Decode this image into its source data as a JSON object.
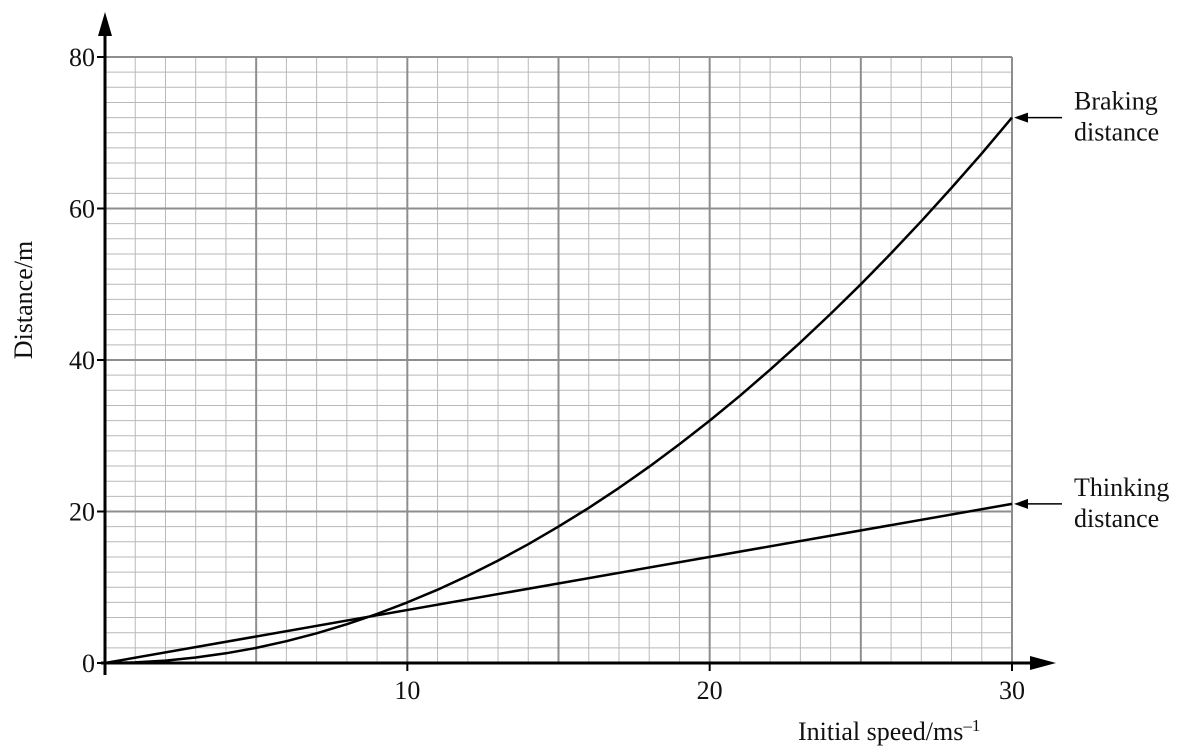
{
  "chart_data": {
    "type": "line",
    "xlabel": "Initial speed/ms",
    "xlabel_superscript": "–1",
    "ylabel": "Distance/m",
    "xlim": [
      0,
      30
    ],
    "ylim": [
      0,
      80
    ],
    "x_ticks": [
      10,
      20,
      30
    ],
    "y_ticks": [
      0,
      20,
      40,
      60,
      80
    ],
    "grid": true,
    "series": [
      {
        "name": "Braking distance",
        "label_lines": [
          "Braking",
          "distance"
        ],
        "x": [
          0,
          1,
          2,
          3,
          4,
          5,
          6,
          7,
          8,
          9,
          10,
          11,
          12,
          13,
          14,
          15,
          16,
          17,
          18,
          19,
          20,
          21,
          22,
          23,
          24,
          25,
          26,
          27,
          28,
          29,
          30
        ],
        "y": [
          0,
          0.08,
          0.32,
          0.72,
          1.28,
          2.0,
          2.88,
          3.92,
          5.12,
          6.48,
          8.0,
          9.68,
          11.52,
          13.52,
          15.68,
          18.0,
          20.48,
          23.12,
          25.92,
          28.88,
          32.0,
          35.28,
          38.72,
          42.32,
          46.08,
          50.0,
          54.08,
          58.32,
          62.72,
          67.28,
          72.0
        ]
      },
      {
        "name": "Thinking distance",
        "label_lines": [
          "Thinking",
          "distance"
        ],
        "x": [
          0,
          30
        ],
        "y": [
          0,
          21
        ]
      }
    ]
  }
}
